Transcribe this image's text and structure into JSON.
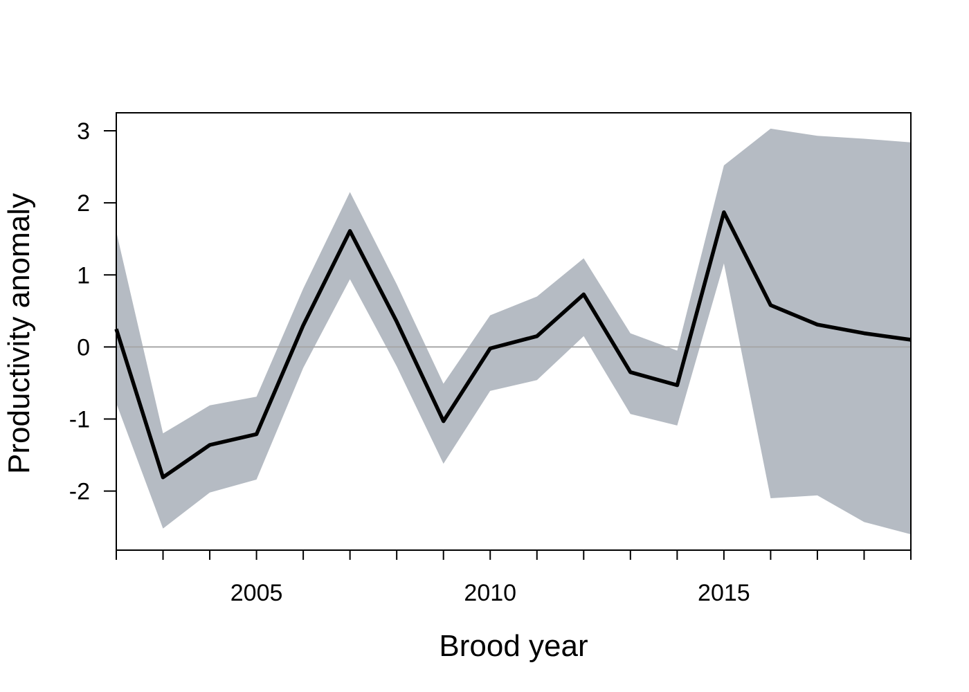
{
  "chart_data": {
    "type": "line",
    "xlabel": "Brood year",
    "ylabel": "Productivity anomaly",
    "xlim": [
      2002,
      2019
    ],
    "ylim": [
      -2.82,
      3.25
    ],
    "x_ticks": [
      2002,
      2003,
      2004,
      2005,
      2006,
      2007,
      2008,
      2009,
      2010,
      2011,
      2012,
      2013,
      2014,
      2015,
      2016,
      2017,
      2018,
      2019
    ],
    "x_tick_labels": [
      {
        "value": 2005,
        "label": "2005"
      },
      {
        "value": 2010,
        "label": "2010"
      },
      {
        "value": 2015,
        "label": "2015"
      }
    ],
    "y_ticks": [
      {
        "value": 3,
        "label": "3"
      },
      {
        "value": 2,
        "label": "2"
      },
      {
        "value": 1,
        "label": "1"
      },
      {
        "value": 0,
        "label": "0"
      },
      {
        "value": -1,
        "label": "-1"
      },
      {
        "value": -2,
        "label": "-2"
      }
    ],
    "reference_line": {
      "y": 0,
      "color": "#a6a6a6"
    },
    "grid": false,
    "colors": {
      "line": "#000000",
      "band": "#b5bbc3",
      "frame": "#000000"
    },
    "x": [
      2002,
      2003,
      2004,
      2005,
      2006,
      2007,
      2008,
      2009,
      2010,
      2011,
      2012,
      2013,
      2014,
      2015,
      2016,
      2017,
      2018,
      2019
    ],
    "series": [
      {
        "values": [
          0.25,
          -1.81,
          -1.36,
          -1.21,
          0.3,
          1.61,
          0.35,
          -1.03,
          -0.02,
          0.15,
          0.73,
          -0.35,
          -0.53,
          1.87,
          0.58,
          0.31,
          0.19,
          0.1
        ],
        "lower": [
          -0.78,
          -2.52,
          -2.02,
          -1.84,
          -0.29,
          0.94,
          -0.27,
          -1.62,
          -0.61,
          -0.46,
          0.15,
          -0.93,
          -1.09,
          1.16,
          -2.1,
          -2.06,
          -2.43,
          -2.6
        ],
        "upper": [
          1.6,
          -1.2,
          -0.81,
          -0.69,
          0.81,
          2.15,
          0.87,
          -0.51,
          0.44,
          0.7,
          1.23,
          0.19,
          -0.05,
          2.52,
          3.03,
          2.93,
          2.89,
          2.84
        ]
      }
    ]
  }
}
